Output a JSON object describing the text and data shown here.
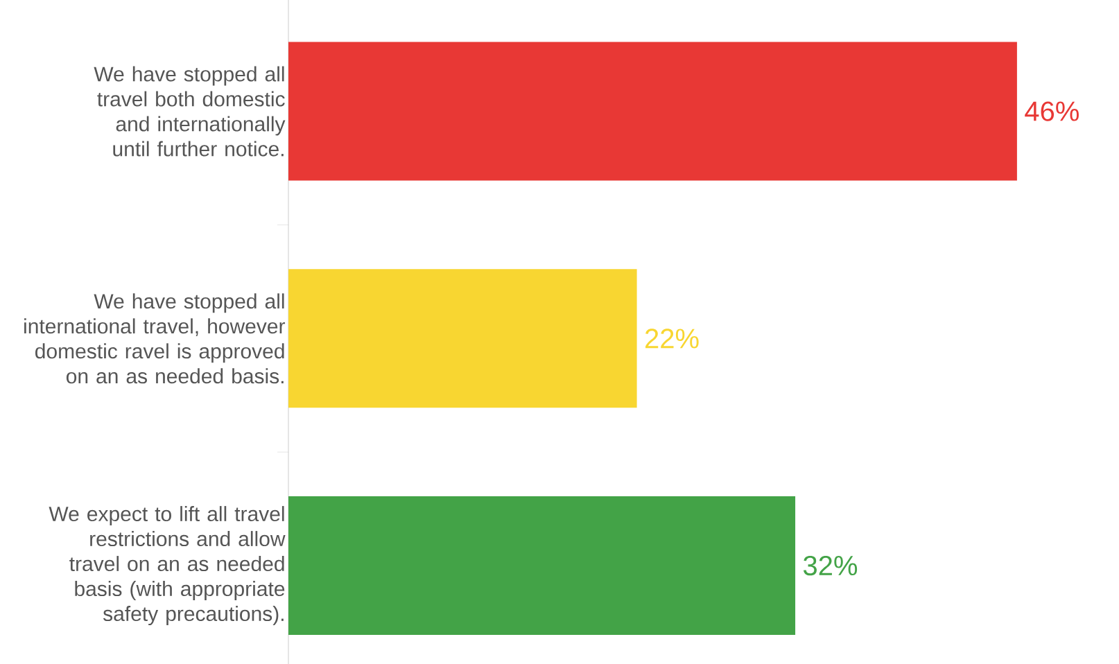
{
  "chart_data": {
    "type": "bar",
    "orientation": "horizontal",
    "categories": [
      "We have stopped all travel both domestic and internationally until further notice.",
      "We have stopped all international travel, however domestic ravel is approved on an as needed basis.",
      "We expect to lift all travel restrictions and allow travel on an as needed basis (with appropriate safety precautions)."
    ],
    "values": [
      46,
      22,
      32
    ],
    "value_labels": [
      "46%",
      "22%",
      "32%"
    ],
    "colors": [
      "#e83835",
      "#f8d631",
      "#43a347"
    ]
  }
}
